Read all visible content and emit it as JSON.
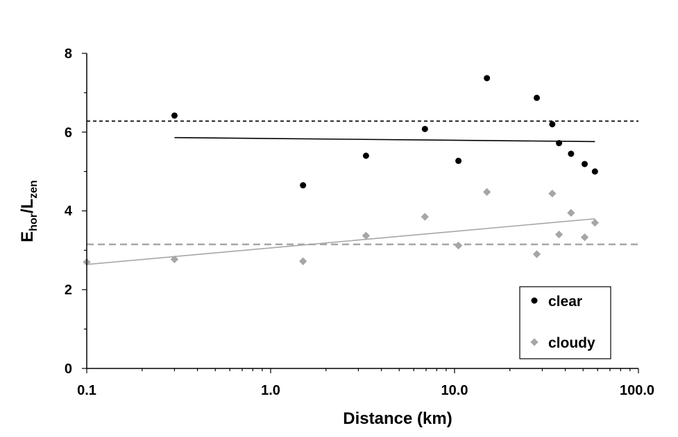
{
  "chart_data": {
    "type": "scatter",
    "xscale": "log",
    "xlim": [
      0.1,
      100
    ],
    "ylim": [
      0,
      8
    ],
    "x_tick_labels": [
      "0.1",
      "1.0",
      "10.0",
      "100.0"
    ],
    "y_tick_labels": [
      "0",
      "2",
      "4",
      "6",
      "8"
    ],
    "xlabel": "Distance (km)",
    "ylabel_main": "E",
    "ylabel_sub1": "hor",
    "ylabel_mid": "/L",
    "ylabel_sub2": "zen",
    "grid": false,
    "legend_position": "bottom-right",
    "series": [
      {
        "name": "clear",
        "marker": "circle",
        "color": "#000000",
        "points": [
          [
            0.3,
            6.42
          ],
          [
            1.5,
            4.65
          ],
          [
            3.3,
            5.4
          ],
          [
            6.9,
            6.08
          ],
          [
            10.5,
            5.27
          ],
          [
            15,
            7.37
          ],
          [
            28,
            6.87
          ],
          [
            34,
            6.2
          ],
          [
            37,
            5.72
          ],
          [
            43,
            5.45
          ],
          [
            51,
            5.19
          ],
          [
            58,
            5.0
          ]
        ],
        "trend": {
          "x": [
            0.3,
            58
          ],
          "y": [
            5.86,
            5.76
          ],
          "color": "#000000"
        },
        "reference_line": {
          "y": 6.28,
          "style": "dashed",
          "color": "#000000"
        }
      },
      {
        "name": "cloudy",
        "marker": "diamond",
        "color": "#a6a6a6",
        "points": [
          [
            0.1,
            2.7
          ],
          [
            0.3,
            2.77
          ],
          [
            1.5,
            2.72
          ],
          [
            3.3,
            3.37
          ],
          [
            6.9,
            3.85
          ],
          [
            10.5,
            3.12
          ],
          [
            15,
            4.48
          ],
          [
            28,
            2.9
          ],
          [
            34,
            4.44
          ],
          [
            37,
            3.4
          ],
          [
            43,
            3.95
          ],
          [
            51,
            3.33
          ],
          [
            58,
            3.7
          ]
        ],
        "trend": {
          "x": [
            0.1,
            58
          ],
          "y": [
            2.64,
            3.8
          ],
          "color": "#a6a6a6"
        },
        "reference_line": {
          "y": 3.15,
          "style": "dashed",
          "color": "#a6a6a6"
        }
      }
    ]
  }
}
